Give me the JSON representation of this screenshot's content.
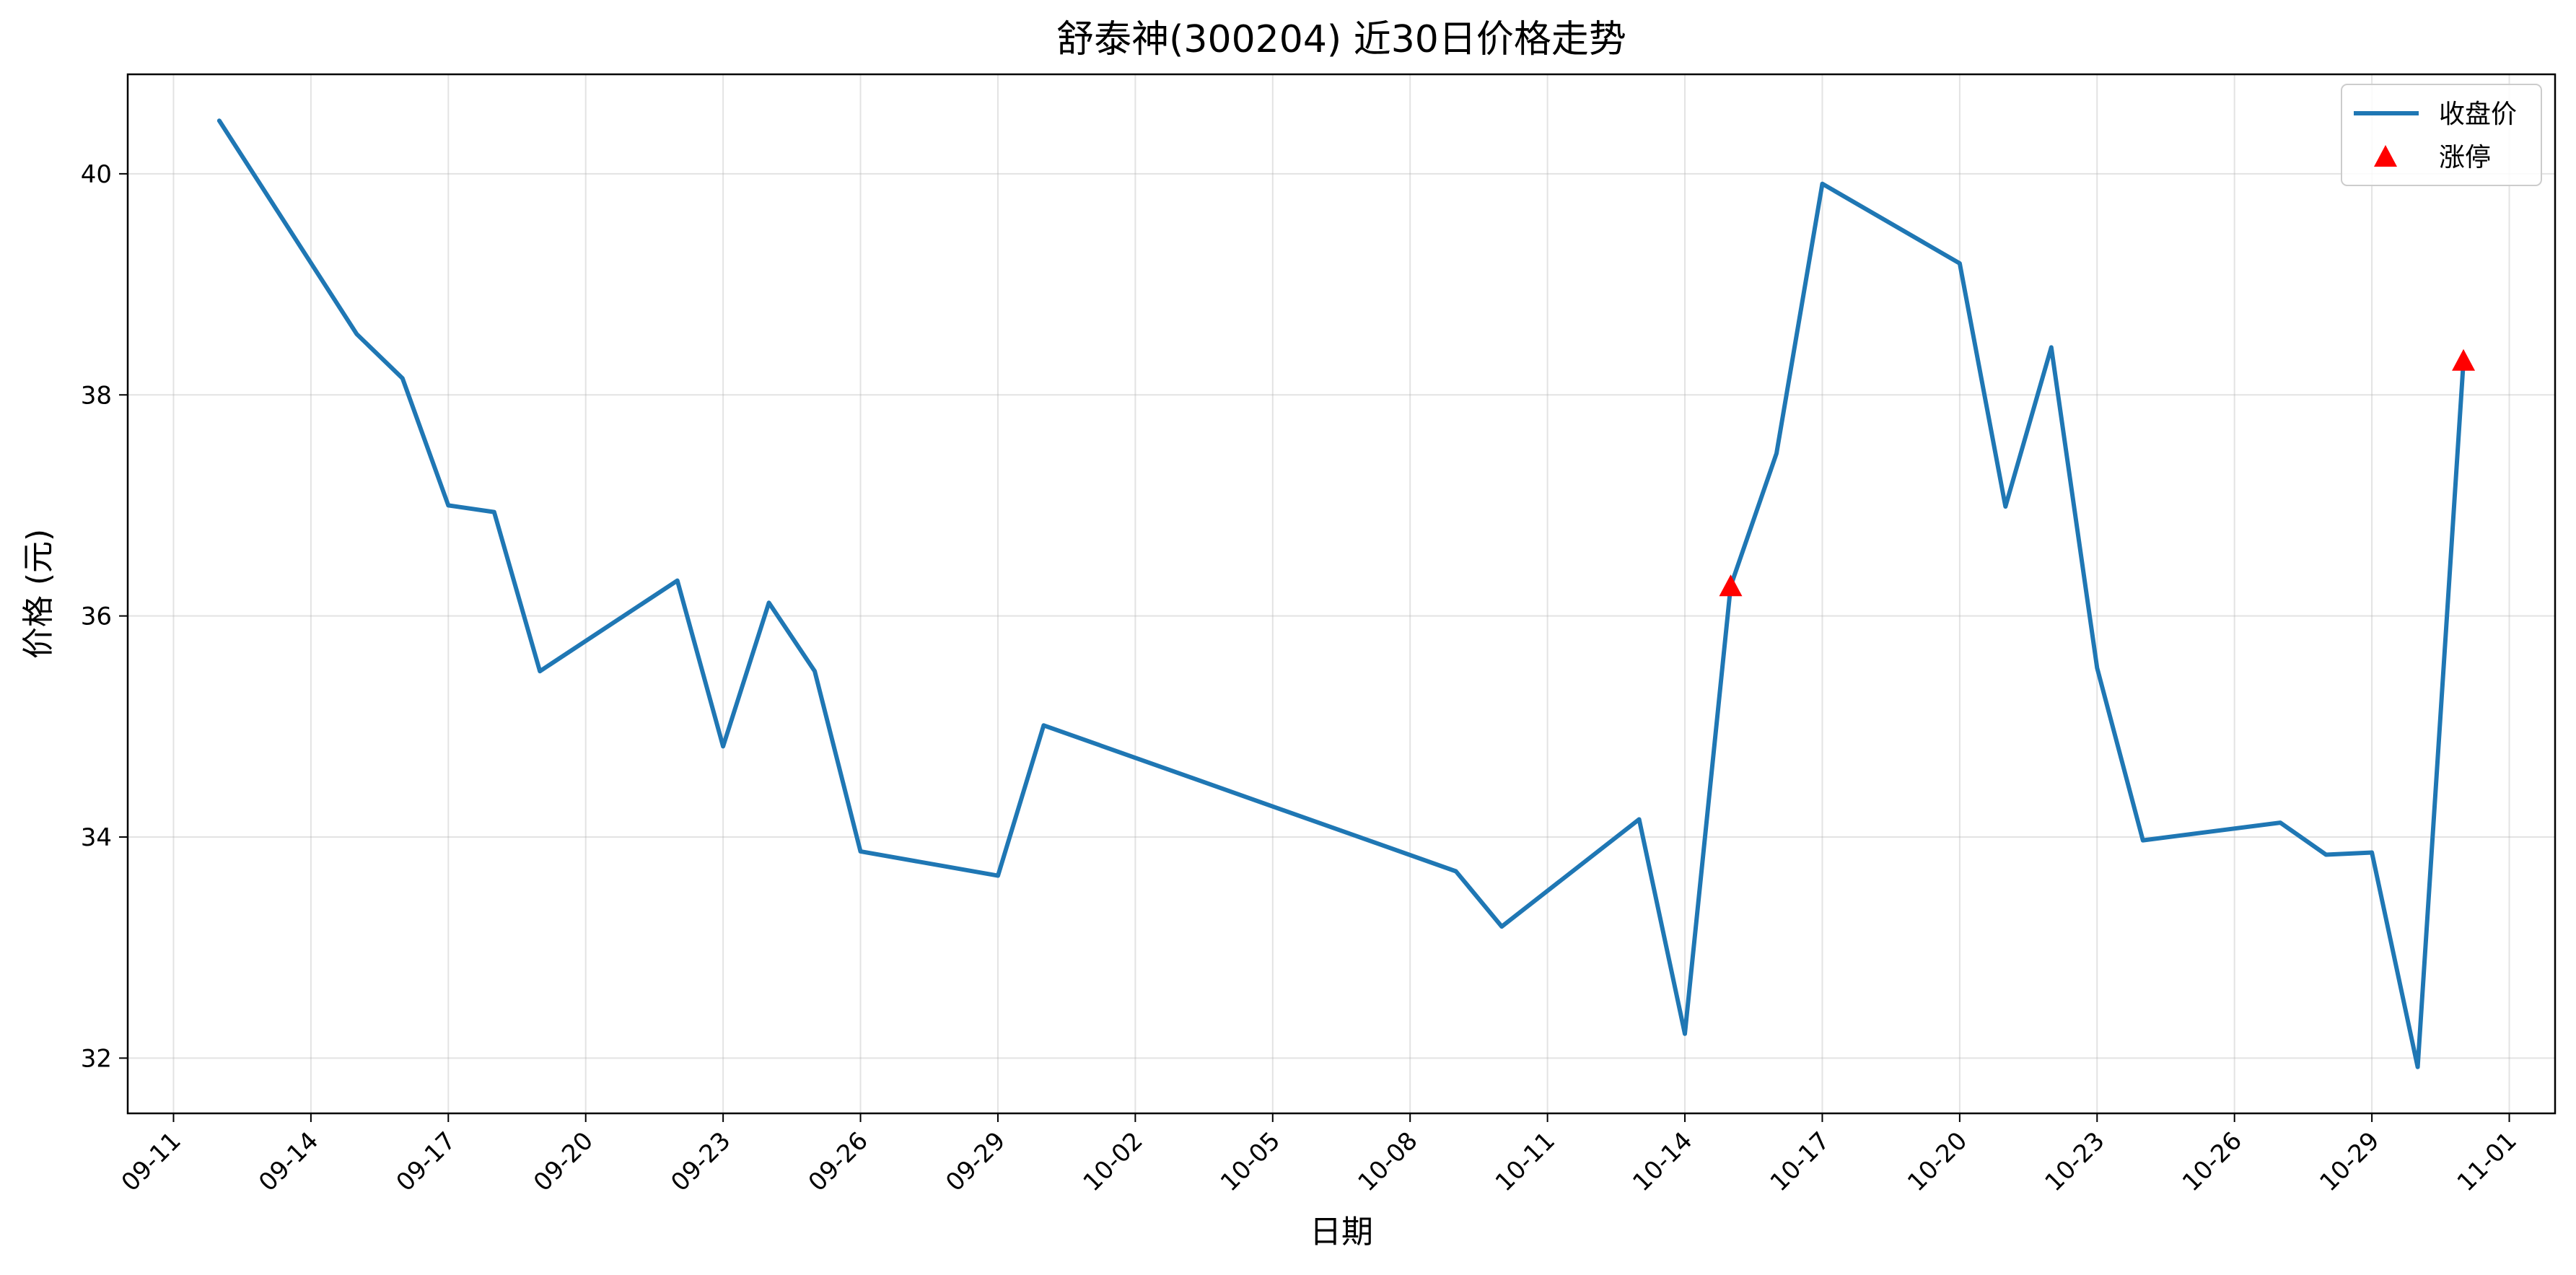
{
  "chart_data": {
    "type": "line",
    "title": "舒泰神(300204) 近30日价格走势",
    "xlabel": "日期",
    "ylabel": "价格 (元)",
    "x_ticks": [
      "09-11",
      "09-14",
      "09-17",
      "09-20",
      "09-23",
      "09-26",
      "09-29",
      "10-02",
      "10-05",
      "10-08",
      "10-11",
      "10-14",
      "10-17",
      "10-20",
      "10-23",
      "10-26",
      "10-29",
      "11-01"
    ],
    "y_ticks": [
      32,
      34,
      36,
      38,
      40
    ],
    "ylim": [
      31.5,
      40.9
    ],
    "xlim": [
      "09-10",
      "11-02"
    ],
    "grid": true,
    "legend_position": "top-right",
    "series": [
      {
        "name": "收盘价",
        "color": "#1f77b4",
        "x": [
          "09-12",
          "09-15",
          "09-16",
          "09-17",
          "09-18",
          "09-19",
          "09-22",
          "09-23",
          "09-24",
          "09-25",
          "09-26",
          "09-29",
          "09-30",
          "10-09",
          "10-10",
          "10-13",
          "10-14",
          "10-15",
          "10-16",
          "10-17",
          "10-20",
          "10-21",
          "10-22",
          "10-23",
          "10-24",
          "10-27",
          "10-28",
          "10-29",
          "10-30",
          "10-31"
        ],
        "values": [
          40.48,
          38.55,
          38.15,
          37.0,
          36.94,
          35.5,
          36.32,
          34.82,
          36.12,
          35.5,
          33.87,
          33.65,
          35.01,
          33.69,
          33.19,
          34.16,
          32.22,
          36.27,
          37.47,
          39.91,
          39.19,
          36.99,
          38.43,
          35.53,
          33.97,
          34.13,
          33.84,
          33.86,
          31.92,
          38.31
        ]
      },
      {
        "name": "涨停",
        "color": "#ff0000",
        "marker": "triangle",
        "x": [
          "10-15",
          "10-31"
        ],
        "values": [
          36.27,
          38.31
        ]
      }
    ]
  }
}
